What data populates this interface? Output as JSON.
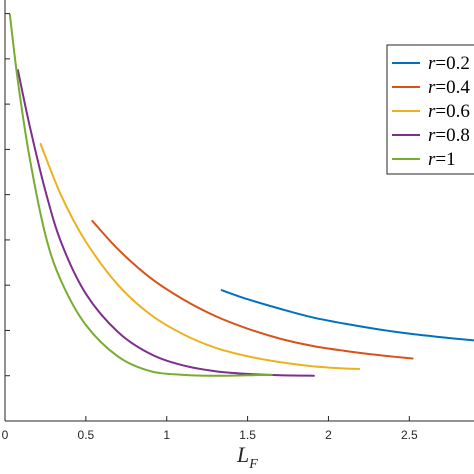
{
  "chart_data": {
    "type": "line",
    "xlabel": "L",
    "xlabel_subscript": "F",
    "ylabel": "",
    "xlim": [
      0,
      2.9
    ],
    "ylim": [
      0,
      9.3
    ],
    "x_ticks": [
      0,
      0.5,
      1,
      1.5,
      2,
      2.5
    ],
    "x_tick_labels": [
      "0",
      "0.5",
      "1",
      "1.5",
      "2",
      "2.5"
    ],
    "y_ticks": [
      1,
      2,
      3,
      4,
      5,
      6,
      7,
      8,
      9
    ],
    "grid": false,
    "legend_position": "top-right",
    "series": [
      {
        "name": "r=0.2",
        "color": "#0072BD",
        "x": [
          1.34,
          1.5,
          1.7,
          1.9,
          2.1,
          2.3,
          2.5,
          2.7,
          2.9
        ],
        "y": [
          2.89,
          2.69,
          2.48,
          2.29,
          2.15,
          2.03,
          1.93,
          1.85,
          1.78
        ]
      },
      {
        "name": "r=0.4",
        "color": "#D95319",
        "x": [
          0.54,
          0.7,
          0.9,
          1.1,
          1.3,
          1.5,
          1.7,
          1.9,
          2.1,
          2.3,
          2.52
        ],
        "y": [
          4.42,
          3.79,
          3.16,
          2.69,
          2.32,
          2.04,
          1.82,
          1.66,
          1.55,
          1.46,
          1.38
        ]
      },
      {
        "name": "r=0.6",
        "color": "#EDB120",
        "x": [
          0.22,
          0.35,
          0.5,
          0.7,
          0.9,
          1.1,
          1.3,
          1.5,
          1.7,
          1.9,
          2.1,
          2.19
        ],
        "y": [
          6.12,
          4.96,
          3.96,
          3.0,
          2.35,
          1.92,
          1.62,
          1.43,
          1.3,
          1.21,
          1.16,
          1.15
        ]
      },
      {
        "name": "r=0.8",
        "color": "#7E2F8E",
        "x": [
          0.08,
          0.15,
          0.25,
          0.35,
          0.5,
          0.7,
          0.9,
          1.1,
          1.3,
          1.5,
          1.7,
          1.91
        ],
        "y": [
          7.75,
          6.56,
          5.08,
          3.92,
          2.81,
          1.96,
          1.48,
          1.23,
          1.1,
          1.04,
          1.01,
          1.0
        ]
      },
      {
        "name": "r=1",
        "color": "#77AC30",
        "x": [
          0.03,
          0.08,
          0.15,
          0.25,
          0.35,
          0.5,
          0.7,
          0.9,
          1.1,
          1.3,
          1.5,
          1.65
        ],
        "y": [
          8.98,
          7.5,
          5.86,
          4.11,
          3.07,
          2.12,
          1.42,
          1.1,
          1.02,
          1.0,
          1.01,
          1.02
        ]
      }
    ]
  }
}
